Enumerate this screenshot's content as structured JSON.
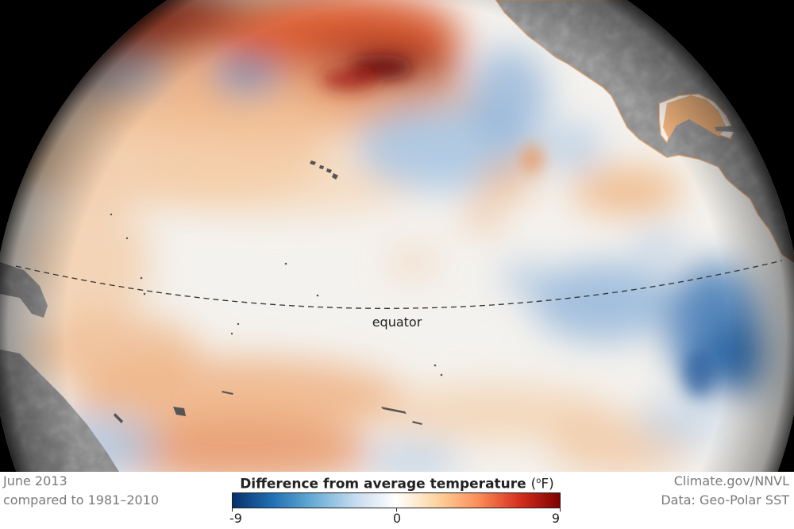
{
  "map": {
    "equator_label": "equator"
  },
  "footer": {
    "date_line": "June 2013",
    "baseline_line": "compared to 1981–2010",
    "credit_line": "Climate.gov/NNVL",
    "source_line": "Data: Geo-Polar SST"
  },
  "legend": {
    "title_text": "Difference from average temperature",
    "unit_open": "(",
    "unit_degree": "o",
    "unit_letter": "F",
    "unit_close": ")",
    "scale_min": -9,
    "scale_max": 9,
    "ticks": [
      "-9",
      "0",
      "9"
    ],
    "colors": [
      "#08306b",
      "#2171b5",
      "#6baed6",
      "#c6dbef",
      "#ffffff",
      "#fdd49e",
      "#fc8d59",
      "#d7301f",
      "#7f0000"
    ]
  }
}
